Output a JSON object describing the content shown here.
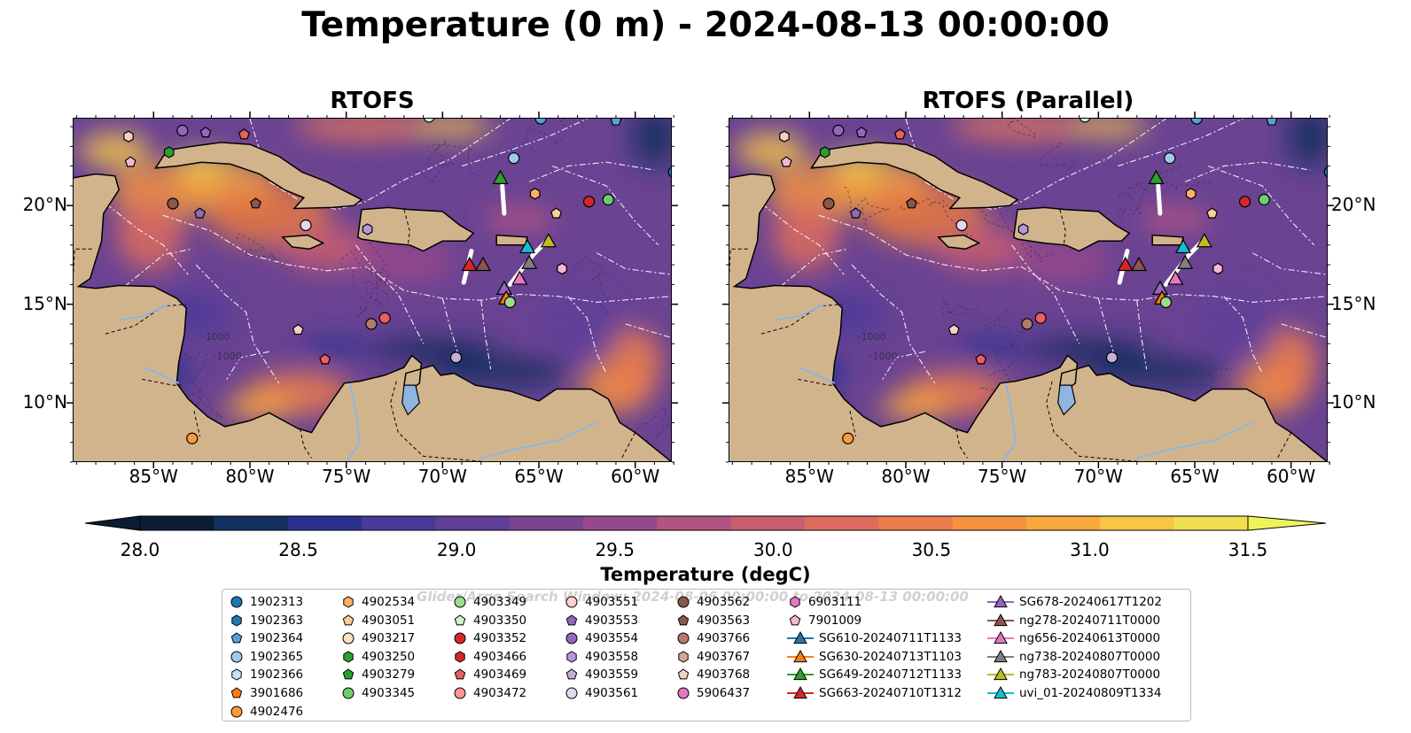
{
  "title": "Temperature (0 m) - 2024-08-13 00:00:00",
  "panels": [
    {
      "title": "RTOFS"
    },
    {
      "title": "RTOFS (Parallel)"
    }
  ],
  "axes": {
    "lon_ticks": [
      "85°W",
      "80°W",
      "75°W",
      "70°W",
      "65°W",
      "60°W"
    ],
    "lat_ticks": [
      "20°N",
      "15°N",
      "10°N"
    ]
  },
  "colorbar": {
    "title": "Temperature (degC)",
    "min": 28.0,
    "max": 31.5,
    "labels": [
      "28.0",
      "28.5",
      "29.0",
      "29.5",
      "30.0",
      "30.5",
      "31.0",
      "31.5"
    ],
    "colors": [
      "#0b1d33",
      "#12305e",
      "#2a318f",
      "#4a3a98",
      "#5f3f98",
      "#7a4590",
      "#96498a",
      "#b05482",
      "#c95e70",
      "#dd6c5e",
      "#ec7c4c",
      "#f5913f",
      "#f8a93c",
      "#f7c643",
      "#f0e04f"
    ],
    "under_color": "#0b1d33",
    "over_color": "#eef35c"
  },
  "contour_labels": [
    "-1000",
    "-1000"
  ],
  "legend": {
    "watermark": "Glider/Argo Search Window: 2024-08-06 00:00:00 to 2024-08-13 00:00:00",
    "items": [
      {
        "label": "1902313",
        "marker": "circle",
        "color": "#1f77b4"
      },
      {
        "label": "1902363",
        "marker": "hexagon",
        "color": "#1f77b4"
      },
      {
        "label": "1902364",
        "marker": "pentagon",
        "color": "#5aa0d8"
      },
      {
        "label": "1902365",
        "marker": "circle",
        "color": "#9ecae9"
      },
      {
        "label": "1902366",
        "marker": "hexagon",
        "color": "#c6e2f5"
      },
      {
        "label": "3901686",
        "marker": "pentagon",
        "color": "#ff7f0e"
      },
      {
        "label": "4902476",
        "marker": "circle",
        "color": "#ff9a3c"
      },
      {
        "label": "4902534",
        "marker": "hexagon",
        "color": "#ffb066"
      },
      {
        "label": "4903051",
        "marker": "pentagon",
        "color": "#ffcc99"
      },
      {
        "label": "4903217",
        "marker": "circle",
        "color": "#ffe0c0"
      },
      {
        "label": "4903250",
        "marker": "hexagon",
        "color": "#2ca02c"
      },
      {
        "label": "4903279",
        "marker": "pentagon",
        "color": "#2ca02c"
      },
      {
        "label": "4903345",
        "marker": "circle",
        "color": "#6ccf6c"
      },
      {
        "label": "4903349",
        "marker": "circle",
        "color": "#98df8a"
      },
      {
        "label": "4903350",
        "marker": "pentagon",
        "color": "#ccf5c6"
      },
      {
        "label": "4903352",
        "marker": "circle",
        "color": "#d62728"
      },
      {
        "label": "4903466",
        "marker": "hexagon",
        "color": "#d62728"
      },
      {
        "label": "4903469",
        "marker": "pentagon",
        "color": "#e8605f"
      },
      {
        "label": "4903472",
        "marker": "circle",
        "color": "#ff9896"
      },
      {
        "label": "4903551",
        "marker": "circle",
        "color": "#ffd0ce"
      },
      {
        "label": "4903553",
        "marker": "pentagon",
        "color": "#9467bd"
      },
      {
        "label": "4903554",
        "marker": "circle",
        "color": "#9467bd"
      },
      {
        "label": "4903558",
        "marker": "hexagon",
        "color": "#b497dc"
      },
      {
        "label": "4903559",
        "marker": "pentagon",
        "color": "#c5b0d5"
      },
      {
        "label": "4903561",
        "marker": "circle",
        "color": "#e4d7f0"
      },
      {
        "label": "4903562",
        "marker": "circle",
        "color": "#8c564b"
      },
      {
        "label": "4903563",
        "marker": "pentagon",
        "color": "#8c564b"
      },
      {
        "label": "4903766",
        "marker": "circle",
        "color": "#b47a6c"
      },
      {
        "label": "4903767",
        "marker": "hexagon",
        "color": "#d4a59a"
      },
      {
        "label": "4903768",
        "marker": "pentagon",
        "color": "#f2d0c8"
      },
      {
        "label": "5906437",
        "marker": "circle",
        "color": "#e377c2"
      },
      {
        "label": "6903111",
        "marker": "hexagon",
        "color": "#e377c2"
      },
      {
        "label": "7901009",
        "marker": "pentagon",
        "color": "#f7b6d2"
      },
      {
        "label": "SG610-20240711T1133",
        "marker": "triangle-line",
        "color": "#1f77b4"
      },
      {
        "label": "SG630-20240713T1103",
        "marker": "triangle-line",
        "color": "#ff7f0e"
      },
      {
        "label": "SG649-20240712T1133",
        "marker": "triangle-line",
        "color": "#2ca02c"
      },
      {
        "label": "SG663-20240710T1312",
        "marker": "triangle-line",
        "color": "#d62728"
      },
      {
        "label": "SG678-20240617T1202",
        "marker": "triangle-line",
        "color": "#9467bd"
      },
      {
        "label": "ng278-20240711T0000",
        "marker": "triangle-line",
        "color": "#8c564b"
      },
      {
        "label": "ng656-20240613T0000",
        "marker": "triangle-line",
        "color": "#e377c2"
      },
      {
        "label": "ng738-20240807T0000",
        "marker": "triangle-line",
        "color": "#7f7f7f"
      },
      {
        "label": "ng783-20240807T0000",
        "marker": "triangle-line",
        "color": "#bcbd22"
      },
      {
        "label": "uvi_01-20240809T1334",
        "marker": "triangle-line",
        "color": "#17becf"
      }
    ]
  },
  "map_markers": [
    {
      "lon": -83.5,
      "lat": 23.8,
      "color": "#9467bd",
      "marker": "circle"
    },
    {
      "lon": -82.3,
      "lat": 23.7,
      "color": "#9467bd",
      "marker": "pentagon"
    },
    {
      "lon": -80.3,
      "lat": 23.6,
      "color": "#e8605f",
      "marker": "pentagon"
    },
    {
      "lon": -86.3,
      "lat": 23.5,
      "color": "#f2d0c8",
      "marker": "hexagon"
    },
    {
      "lon": -86.2,
      "lat": 22.2,
      "color": "#f7b6d2",
      "marker": "pentagon"
    },
    {
      "lon": -84.2,
      "lat": 22.7,
      "color": "#2ca02c",
      "marker": "hexagon"
    },
    {
      "lon": -84.0,
      "lat": 20.1,
      "color": "#8c564b",
      "marker": "circle"
    },
    {
      "lon": -82.6,
      "lat": 19.6,
      "color": "#9467bd",
      "marker": "pentagon"
    },
    {
      "lon": -79.7,
      "lat": 20.1,
      "color": "#8c564b",
      "marker": "pentagon"
    },
    {
      "lon": -77.1,
      "lat": 19.0,
      "color": "#e4d7f0",
      "marker": "circle"
    },
    {
      "lon": -73.9,
      "lat": 18.8,
      "color": "#b497dc",
      "marker": "hexagon"
    },
    {
      "lon": -66.3,
      "lat": 22.4,
      "color": "#9ecae9",
      "marker": "circle"
    },
    {
      "lon": -65.2,
      "lat": 20.6,
      "color": "#ffb066",
      "marker": "hexagon"
    },
    {
      "lon": -64.1,
      "lat": 19.6,
      "color": "#ffcc99",
      "marker": "pentagon"
    },
    {
      "lon": -62.4,
      "lat": 20.2,
      "color": "#d62728",
      "marker": "circle"
    },
    {
      "lon": -61.4,
      "lat": 20.3,
      "color": "#6ccf6c",
      "marker": "circle"
    },
    {
      "lon": -63.8,
      "lat": 16.8,
      "color": "#f7b6d2",
      "marker": "hexagon"
    },
    {
      "lon": -73.7,
      "lat": 14.0,
      "color": "#b47a6c",
      "marker": "circle"
    },
    {
      "lon": -73.0,
      "lat": 14.3,
      "color": "#e8605f",
      "marker": "circle"
    },
    {
      "lon": -77.5,
      "lat": 13.7,
      "color": "#f2d0c8",
      "marker": "pentagon"
    },
    {
      "lon": -76.1,
      "lat": 12.2,
      "color": "#e8605f",
      "marker": "pentagon"
    },
    {
      "lon": -69.3,
      "lat": 12.3,
      "color": "#c5b0d5",
      "marker": "circle"
    },
    {
      "lon": -83.0,
      "lat": 8.2,
      "color": "#ff9a3c",
      "marker": "circle"
    },
    {
      "lon": -70.7,
      "lat": 24.5,
      "color": "#ccf5c6",
      "marker": "circle"
    },
    {
      "lon": -64.9,
      "lat": 24.4,
      "color": "#5aa0d8",
      "marker": "circle"
    },
    {
      "lon": -61.0,
      "lat": 24.3,
      "color": "#5aa0d8",
      "marker": "pentagon"
    },
    {
      "lon": -58.0,
      "lat": 21.7,
      "color": "#1f77b4",
      "marker": "circle"
    },
    {
      "lon": -67.0,
      "lat": 21.4,
      "color": "#2ca02c",
      "marker": "triangle"
    },
    {
      "lon": -68.6,
      "lat": 17.0,
      "color": "#d62728",
      "marker": "triangle"
    },
    {
      "lon": -67.9,
      "lat": 17.0,
      "color": "#8c564b",
      "marker": "triangle"
    },
    {
      "lon": -66.8,
      "lat": 15.8,
      "color": "#9467bd",
      "marker": "triangle"
    },
    {
      "lon": -66.0,
      "lat": 16.3,
      "color": "#e377c2",
      "marker": "triangle"
    },
    {
      "lon": -65.5,
      "lat": 17.1,
      "color": "#7f7f7f",
      "marker": "triangle"
    },
    {
      "lon": -65.6,
      "lat": 17.9,
      "color": "#17becf",
      "marker": "triangle"
    },
    {
      "lon": -64.5,
      "lat": 18.2,
      "color": "#bcbd22",
      "marker": "triangle"
    },
    {
      "lon": -66.7,
      "lat": 15.3,
      "color": "#ff7f0e",
      "marker": "triangle"
    },
    {
      "lon": -66.5,
      "lat": 15.1,
      "color": "#98df8a",
      "marker": "circle"
    }
  ]
}
